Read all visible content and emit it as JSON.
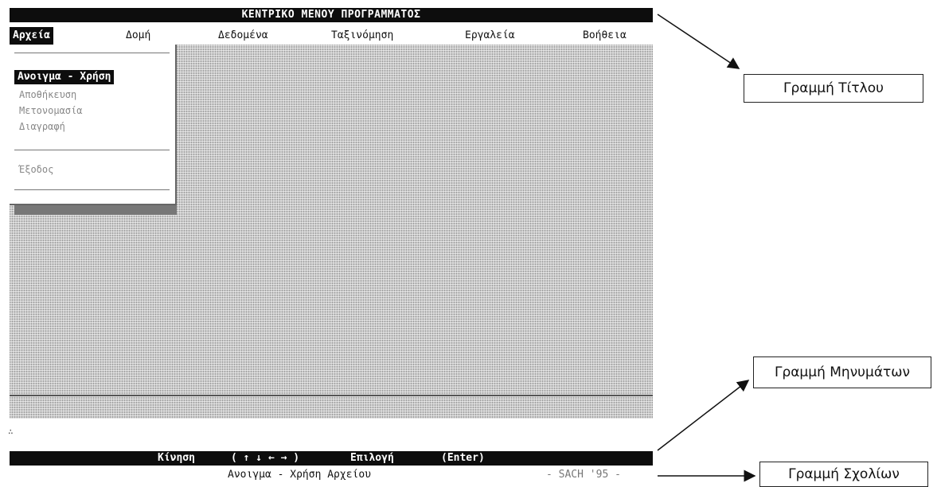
{
  "screen": {
    "title": "ΚΕΝΤΡΙΚΟ ΜΕΝΟΥ ΠΡΟΓΡΑΜΜΑΤΟΣ",
    "menu": [
      {
        "label": "Αρχεία",
        "active": true
      },
      {
        "label": "Δομή",
        "active": false
      },
      {
        "label": "Δεδομένα",
        "active": false
      },
      {
        "label": "Ταξινόμηση",
        "active": false
      },
      {
        "label": "Εργαλεία",
        "active": false
      },
      {
        "label": "Βοήθεια",
        "active": false
      }
    ],
    "dropdown": {
      "items": [
        "Ανοιγμα - Χρήση",
        "Αποθήκευση",
        "Μετονομασία",
        "Διαγραφή"
      ],
      "exit_label": "Έξοδος",
      "selected_index": 0
    },
    "status_bar": {
      "move_label": "Κίνηση",
      "move_keys": "( ↑ ↓ ← → )",
      "select_label": "Επιλογή",
      "select_key": "(Enter)"
    },
    "hint_line": {
      "text": "Ανοιγμα - Χρήση Αρχείου",
      "right_text": "- SACH '95 -"
    }
  },
  "callouts": {
    "title_line": "Γραμμή Τίτλου",
    "message_line": "Γραμμή Μηνυμάτων",
    "comment_line": "Γραμμή Σχολίων"
  }
}
